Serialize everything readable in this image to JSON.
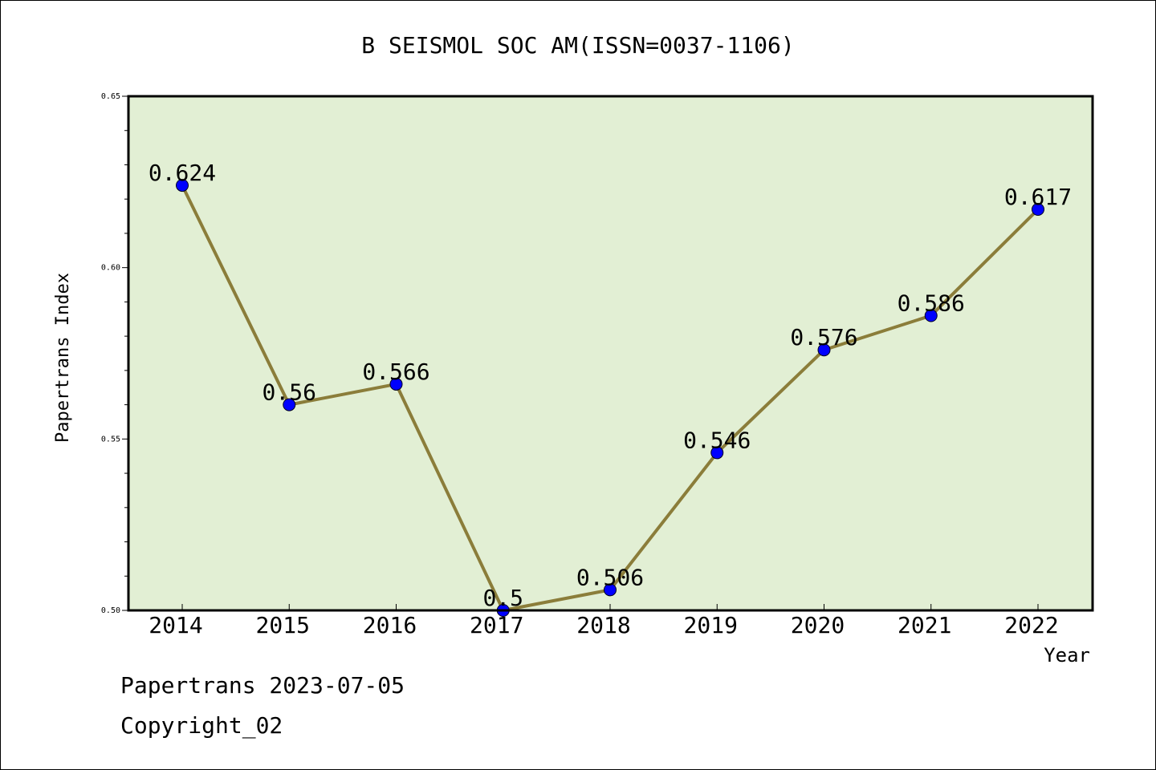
{
  "chart_data": {
    "type": "line",
    "title": "B SEISMOL SOC AM(ISSN=0037-1106)",
    "xlabel": "Year",
    "ylabel": "Papertrans Index",
    "x": [
      "2014",
      "2015",
      "2016",
      "2017",
      "2018",
      "2019",
      "2020",
      "2021",
      "2022"
    ],
    "series": [
      {
        "values": [
          0.624,
          0.56,
          0.566,
          0.5,
          0.506,
          0.546,
          0.576,
          0.586,
          0.617
        ],
        "labels": [
          "0.624",
          "0.56",
          "0.566",
          "0.5",
          "0.506",
          "0.546",
          "0.576",
          "0.586",
          "0.617"
        ]
      }
    ],
    "ylim": [
      0.5,
      0.65
    ],
    "yticks": [
      "0.50",
      "0.55",
      "0.60",
      "0.65"
    ],
    "grid": false,
    "colors": {
      "plot_background": "#e2efd4",
      "line": "#8b7d3a",
      "marker": "#0000ff"
    }
  },
  "footer": {
    "line1": "Papertrans 2023-07-05",
    "line2": "Copyright_02"
  }
}
